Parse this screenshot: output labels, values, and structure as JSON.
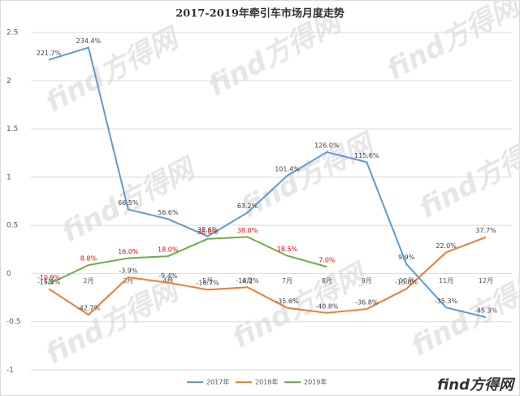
{
  "chart_data": {
    "type": "line",
    "title": "2017-2019年牵引车市场月度走势",
    "watermark": "find方得网",
    "categories": [
      "1月",
      "2月",
      "3月",
      "4月",
      "5月",
      "6月",
      "7月",
      "8月",
      "9月",
      "10月",
      "11月",
      "12月"
    ],
    "series": [
      {
        "name": "2017年",
        "color": "#5b9bd5",
        "values": [
          2.217,
          2.344,
          0.665,
          0.566,
          0.386,
          0.632,
          1.014,
          1.26,
          1.156,
          0.099,
          -0.353,
          -0.453
        ],
        "value_labels": [
          "221.7%",
          "234.4%",
          "66.5%",
          "56.6%",
          "38.6%",
          "63.2%",
          "101.4%",
          "126.0%",
          "115.6%",
          "9.9%",
          "-35.3%",
          "-45.3%"
        ]
      },
      {
        "name": "2018年",
        "color": "#ed7d31",
        "values": [
          -0.158,
          -0.427,
          -0.039,
          -0.094,
          -0.167,
          -0.142,
          -0.356,
          -0.408,
          -0.368,
          -0.158,
          0.22,
          0.377
        ],
        "value_labels": [
          "-15.8%",
          "-42.7%",
          "-3.9%",
          "-9.4%",
          "-16.7%",
          "-14.2%",
          "-35.6%",
          "-40.8%",
          "-36.8%",
          "-15.8%",
          "22.0%",
          "37.7%"
        ]
      },
      {
        "name": "2019年",
        "color": "#70ad47",
        "label_color": "#ff0000",
        "values": [
          -0.109,
          0.088,
          0.16,
          0.18,
          0.36,
          0.38,
          0.185,
          0.07,
          null,
          null,
          null,
          null
        ],
        "value_labels": [
          "-10.9%",
          "8.8%",
          "16.0%",
          "18.0%",
          "36.0%",
          "38.0%",
          "18.5%",
          "7.0%",
          null,
          null,
          null,
          null
        ]
      }
    ],
    "ylim": [
      -1,
      2.5
    ],
    "yticks": [
      -1,
      -0.5,
      0,
      0.5,
      1,
      1.5,
      2,
      2.5
    ],
    "grid": true,
    "legend": "bottom"
  }
}
